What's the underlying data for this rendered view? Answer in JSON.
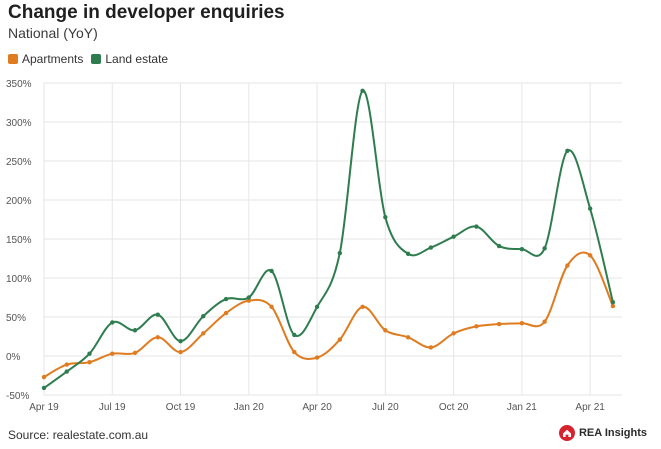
{
  "header": {
    "title": "Change in developer enquiries",
    "subtitle": "National (YoY)"
  },
  "footer": {
    "source": "Source: realestate.com.au",
    "brand": "REA Insights"
  },
  "colors": {
    "Apartments": "#e07b1f",
    "Land estate": "#2e7d4f",
    "grid": "#e6e6e6",
    "axis_text": "#555555",
    "brand_red": "#d6232f"
  },
  "chart_data": {
    "type": "line",
    "title": "Change in developer enquiries",
    "subtitle": "National (YoY)",
    "xlabel": "",
    "ylabel": "",
    "x_ticks": [
      "Apr 19",
      "Jul 19",
      "Oct 19",
      "Jan 20",
      "Apr 20",
      "Jul 20",
      "Oct 20",
      "Jan 21",
      "Apr 21"
    ],
    "x": [
      "Apr 19",
      "May 19",
      "Jun 19",
      "Jul 19",
      "Aug 19",
      "Sep 19",
      "Oct 19",
      "Nov 19",
      "Dec 19",
      "Jan 20",
      "Feb 20",
      "Mar 20",
      "Apr 20",
      "May 20",
      "Jun 20",
      "Jul 20",
      "Aug 20",
      "Sep 20",
      "Oct 20",
      "Nov 20",
      "Dec 20",
      "Jan 21",
      "Feb 21",
      "Mar 21",
      "Apr 21",
      "May 21"
    ],
    "y_ticks": [
      -50,
      0,
      50,
      100,
      150,
      200,
      250,
      300,
      350
    ],
    "y_tick_labels": [
      "-50%",
      "0%",
      "50%",
      "100%",
      "150%",
      "200%",
      "250%",
      "300%",
      "350%"
    ],
    "ylim": [
      -50,
      350
    ],
    "grid": true,
    "legend": "top-left",
    "series": [
      {
        "name": "Apartments",
        "values": [
          -27,
          -11,
          -8,
          3,
          4,
          24,
          5,
          29,
          55,
          71,
          63,
          5,
          -2,
          21,
          63,
          33,
          24,
          11,
          29,
          38,
          41,
          42,
          44,
          116,
          129,
          64
        ]
      },
      {
        "name": "Land estate",
        "values": [
          -41,
          -20,
          3,
          43,
          33,
          53,
          19,
          51,
          73,
          75,
          109,
          27,
          63,
          132,
          340,
          178,
          131,
          139,
          153,
          166,
          141,
          137,
          138,
          263,
          189,
          69
        ]
      }
    ]
  }
}
